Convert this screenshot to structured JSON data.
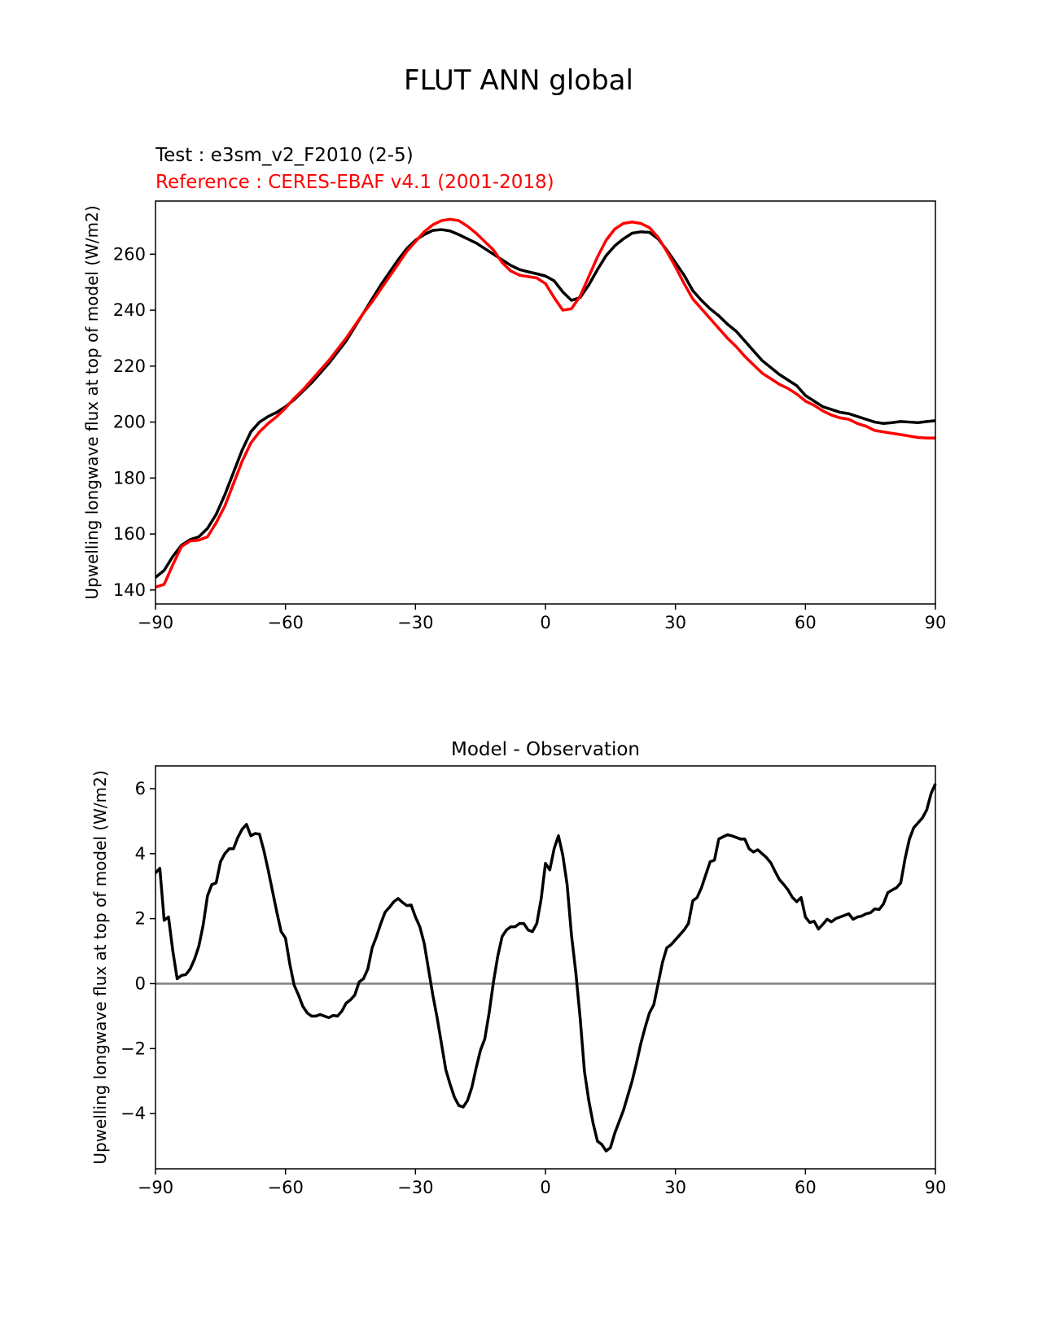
{
  "figure_title": "FLUT ANN global",
  "chart_data": [
    {
      "type": "line",
      "test_label": "Test : e3sm_v2_F2010 (2-5)",
      "reference_label": "Reference : CERES-EBAF v4.1 (2001-2018)",
      "xlabel": "",
      "ylabel": "Upwelling longwave flux at top of model (W/m2)",
      "xlim": [
        -90,
        90
      ],
      "ylim": [
        135,
        279
      ],
      "xticks": [
        -90,
        -60,
        -30,
        0,
        30,
        60,
        90
      ],
      "xtick_labels": [
        "−90",
        "−60",
        "−30",
        "0",
        "30",
        "60",
        "90"
      ],
      "yticks": [
        140,
        160,
        180,
        200,
        220,
        240,
        260
      ],
      "ytick_labels": [
        "140",
        "160",
        "180",
        "200",
        "220",
        "240",
        "260"
      ],
      "grid": false,
      "series": [
        {
          "color": "#000000",
          "x": [
            -90,
            -88,
            -86,
            -84,
            -82,
            -80,
            -78,
            -76,
            -74,
            -72,
            -70,
            -68,
            -66,
            -64,
            -62,
            -60,
            -58,
            -56,
            -54,
            -52,
            -50,
            -48,
            -46,
            -44,
            -42,
            -40,
            -38,
            -36,
            -34,
            -32,
            -30,
            -28,
            -26,
            -24,
            -22,
            -20,
            -18,
            -16,
            -14,
            -12,
            -10,
            -8,
            -6,
            -4,
            -2,
            0,
            2,
            4,
            6,
            8,
            10,
            12,
            14,
            16,
            18,
            20,
            22,
            24,
            26,
            28,
            30,
            32,
            34,
            36,
            38,
            40,
            42,
            44,
            46,
            48,
            50,
            52,
            54,
            56,
            58,
            60,
            62,
            64,
            66,
            68,
            70,
            72,
            74,
            76,
            78,
            80,
            82,
            84,
            86,
            88,
            90
          ],
          "y": [
            144.5,
            147,
            152,
            156,
            158,
            159,
            162,
            167,
            174,
            182,
            190,
            196.5,
            200,
            202,
            203.5,
            205.5,
            208,
            211,
            214,
            217.5,
            221,
            225,
            229,
            234,
            239,
            244,
            249,
            253.5,
            258,
            262,
            265,
            267,
            268.5,
            268.8,
            268.3,
            267,
            265.5,
            264,
            262,
            260,
            258,
            256,
            254.5,
            253.7,
            253,
            252.2,
            250.5,
            246.5,
            243.5,
            244.5,
            249,
            254.5,
            259.5,
            263,
            265.5,
            267.5,
            268,
            267.8,
            265.5,
            261.5,
            257,
            252.5,
            247,
            243.5,
            240.5,
            238,
            235,
            232.5,
            229,
            225.5,
            222,
            219.5,
            217,
            215,
            213,
            209.5,
            207.5,
            205.5,
            204.5,
            203.5,
            203,
            202,
            201,
            200,
            199.5,
            199.8,
            200.2,
            200,
            199.8,
            200.2,
            200.5
          ]
        },
        {
          "color": "#ff0000",
          "x": [
            -90,
            -88,
            -86,
            -84,
            -82,
            -80,
            -78,
            -76,
            -74,
            -72,
            -70,
            -68,
            -66,
            -64,
            -62,
            -60,
            -58,
            -56,
            -54,
            -52,
            -50,
            -48,
            -46,
            -44,
            -42,
            -40,
            -38,
            -36,
            -34,
            -32,
            -30,
            -28,
            -26,
            -24,
            -22,
            -20,
            -18,
            -16,
            -14,
            -12,
            -10,
            -8,
            -6,
            -4,
            -2,
            0,
            2,
            4,
            6,
            8,
            10,
            12,
            14,
            16,
            18,
            20,
            22,
            24,
            26,
            28,
            30,
            32,
            34,
            36,
            38,
            40,
            42,
            44,
            46,
            48,
            50,
            52,
            54,
            56,
            58,
            60,
            62,
            64,
            66,
            68,
            70,
            72,
            74,
            76,
            78,
            80,
            82,
            84,
            86,
            88,
            90
          ],
          "y": [
            141,
            142,
            149,
            155.5,
            157.5,
            157.8,
            159,
            164,
            170,
            178,
            186,
            192.5,
            196.5,
            199.5,
            202,
            205,
            208.5,
            211.5,
            215,
            218.5,
            222,
            226,
            230,
            234.5,
            239,
            243,
            247.5,
            252,
            256.5,
            261,
            264.5,
            268,
            270.5,
            272,
            272.5,
            272,
            270,
            267.5,
            264.5,
            261.5,
            257,
            254,
            252.5,
            252,
            251.5,
            249.5,
            244.5,
            240,
            240.5,
            245,
            252,
            259,
            265,
            269,
            271,
            271.5,
            271,
            269.5,
            266,
            261,
            255.5,
            249.5,
            244,
            240.5,
            237,
            233.5,
            230,
            227,
            223.5,
            220.5,
            217.5,
            215.5,
            213.5,
            212,
            210,
            207.5,
            206,
            204,
            202.5,
            201.5,
            201,
            199.5,
            198.5,
            197,
            196.5,
            196,
            195.5,
            195,
            194.5,
            194.3,
            194.3
          ]
        }
      ]
    },
    {
      "type": "line",
      "title": "Model - Observation",
      "xlabel": "",
      "ylabel": "Upwelling longwave flux at top of model (W/m2)",
      "xlim": [
        -90,
        90
      ],
      "ylim": [
        -5.7,
        6.7
      ],
      "xticks": [
        -90,
        -60,
        -30,
        0,
        30,
        60,
        90
      ],
      "xtick_labels": [
        "−90",
        "−60",
        "−30",
        "0",
        "30",
        "60",
        "90"
      ],
      "yticks": [
        -4,
        -2,
        0,
        2,
        4,
        6
      ],
      "ytick_labels": [
        "−4",
        "−2",
        "0",
        "2",
        "4",
        "6"
      ],
      "grid": false,
      "zero_line_color": "#808080",
      "series": [
        {
          "color": "#000000",
          "x": [
            -90,
            -89,
            -88,
            -87,
            -86,
            -85,
            -84,
            -83,
            -82,
            -81,
            -80,
            -79,
            -78,
            -77,
            -76,
            -75,
            -74,
            -73,
            -72,
            -71,
            -70,
            -69,
            -68,
            -67,
            -66,
            -65,
            -64,
            -63,
            -62,
            -61,
            -60,
            -59,
            -58,
            -57,
            -56,
            -55,
            -54,
            -53,
            -52,
            -51,
            -50,
            -49,
            -48,
            -47,
            -46,
            -45,
            -44,
            -43,
            -42,
            -41,
            -40,
            -39,
            -38,
            -37,
            -36,
            -35,
            -34,
            -33,
            -32,
            -31,
            -30,
            -29,
            -28,
            -27,
            -26,
            -25,
            -24,
            -23,
            -22,
            -21,
            -20,
            -19,
            -18,
            -17,
            -16,
            -15,
            -14,
            -13,
            -12,
            -11,
            -10,
            -9,
            -8,
            -7,
            -6,
            -5,
            -4,
            -3,
            -2,
            -1,
            0,
            1,
            2,
            3,
            4,
            5,
            6,
            7,
            8,
            9,
            10,
            11,
            12,
            13,
            14,
            15,
            16,
            17,
            18,
            19,
            20,
            21,
            22,
            23,
            24,
            25,
            26,
            27,
            28,
            29,
            30,
            31,
            32,
            33,
            34,
            35,
            36,
            37,
            38,
            39,
            40,
            41,
            42,
            43,
            44,
            45,
            46,
            47,
            48,
            49,
            50,
            51,
            52,
            53,
            54,
            55,
            56,
            57,
            58,
            59,
            60,
            61,
            62,
            63,
            64,
            65,
            66,
            67,
            68,
            69,
            70,
            71,
            72,
            73,
            74,
            75,
            76,
            77,
            78,
            79,
            80,
            81,
            82,
            83,
            84,
            85,
            86,
            87,
            88,
            89,
            90
          ],
          "y": [
            3.4,
            3.55,
            1.95,
            2.05,
            1.0,
            0.15,
            0.25,
            0.28,
            0.45,
            0.75,
            1.15,
            1.8,
            2.7,
            3.05,
            3.1,
            3.75,
            4.0,
            4.15,
            4.15,
            4.5,
            4.75,
            4.9,
            4.55,
            4.62,
            4.6,
            4.1,
            3.5,
            2.85,
            2.2,
            1.6,
            1.4,
            0.6,
            -0.05,
            -0.35,
            -0.7,
            -0.9,
            -1.0,
            -1.0,
            -0.95,
            -1.0,
            -1.05,
            -0.98,
            -1.0,
            -0.85,
            -0.6,
            -0.5,
            -0.35,
            0.05,
            0.15,
            0.45,
            1.1,
            1.45,
            1.85,
            2.2,
            2.35,
            2.52,
            2.62,
            2.5,
            2.4,
            2.42,
            2.05,
            1.75,
            1.25,
            0.45,
            -0.35,
            -1.05,
            -1.85,
            -2.65,
            -3.1,
            -3.5,
            -3.75,
            -3.8,
            -3.6,
            -3.2,
            -2.6,
            -2.05,
            -1.7,
            -0.9,
            0.05,
            0.85,
            1.45,
            1.65,
            1.75,
            1.75,
            1.85,
            1.85,
            1.65,
            1.6,
            1.85,
            2.6,
            3.7,
            3.5,
            4.15,
            4.55,
            3.95,
            3.05,
            1.5,
            0.35,
            -1.05,
            -2.7,
            -3.6,
            -4.3,
            -4.85,
            -4.95,
            -5.15,
            -5.05,
            -4.6,
            -4.25,
            -3.9,
            -3.45,
            -3.0,
            -2.45,
            -1.85,
            -1.35,
            -0.9,
            -0.65,
            0.0,
            0.65,
            1.1,
            1.2,
            1.35,
            1.5,
            1.65,
            1.85,
            2.55,
            2.65,
            2.95,
            3.35,
            3.75,
            3.8,
            4.45,
            4.52,
            4.58,
            4.55,
            4.5,
            4.45,
            4.45,
            4.15,
            4.05,
            4.12,
            4.0,
            3.88,
            3.72,
            3.45,
            3.2,
            3.05,
            2.88,
            2.65,
            2.52,
            2.65,
            2.05,
            1.88,
            1.92,
            1.68,
            1.82,
            1.98,
            1.9,
            2.0,
            2.05,
            2.1,
            2.15,
            1.98,
            2.05,
            2.08,
            2.15,
            2.18,
            2.3,
            2.28,
            2.45,
            2.8,
            2.88,
            2.95,
            3.1,
            3.85,
            4.45,
            4.8,
            4.95,
            5.1,
            5.35,
            5.85,
            6.15
          ]
        }
      ]
    }
  ]
}
